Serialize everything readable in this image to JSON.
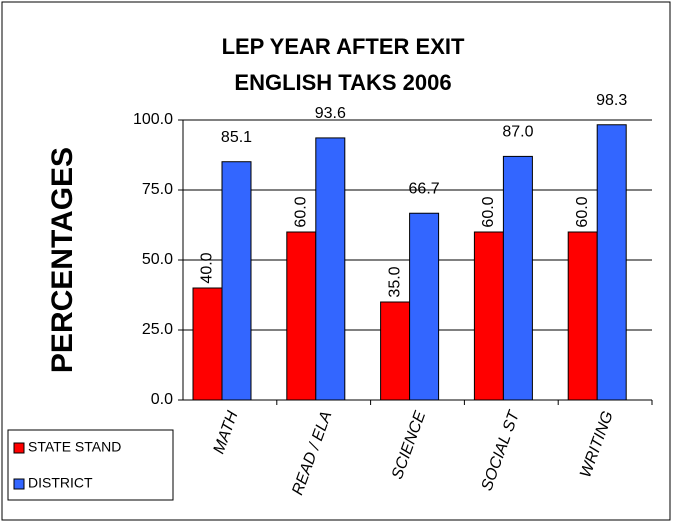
{
  "chart_data": {
    "type": "bar",
    "title": [
      "LEP YEAR AFTER EXIT",
      "ENGLISH TAKS 2006"
    ],
    "y_label": "PERCENTAGES",
    "categories": [
      "MATH",
      "READ / ELA",
      "SCIENCE",
      "SOCIAL ST",
      "WRITING"
    ],
    "series": [
      {
        "name": "STATE STAND",
        "color": "#ff0000",
        "values": [
          40,
          60,
          35,
          60,
          60
        ],
        "value_labels": [
          "40.0",
          "60.0",
          "35.0",
          "60.0",
          "60.0"
        ]
      },
      {
        "name": "DISTRICT",
        "color": "#3366ff",
        "values": [
          85.1,
          93.6,
          66.7,
          87,
          98.3
        ],
        "value_labels": [
          "85.1",
          "93.6",
          "66.7",
          "87.0",
          "98.3"
        ]
      }
    ],
    "ylim": [
      0,
      100
    ],
    "yticks": [
      {
        "value": 0,
        "label": "0.0"
      },
      {
        "value": 25,
        "label": "25.0"
      },
      {
        "value": 50,
        "label": "50.0"
      },
      {
        "value": 75,
        "label": "75.0"
      },
      {
        "value": 100,
        "label": "100.0"
      }
    ],
    "grid": true,
    "legend": "bottom-left"
  }
}
